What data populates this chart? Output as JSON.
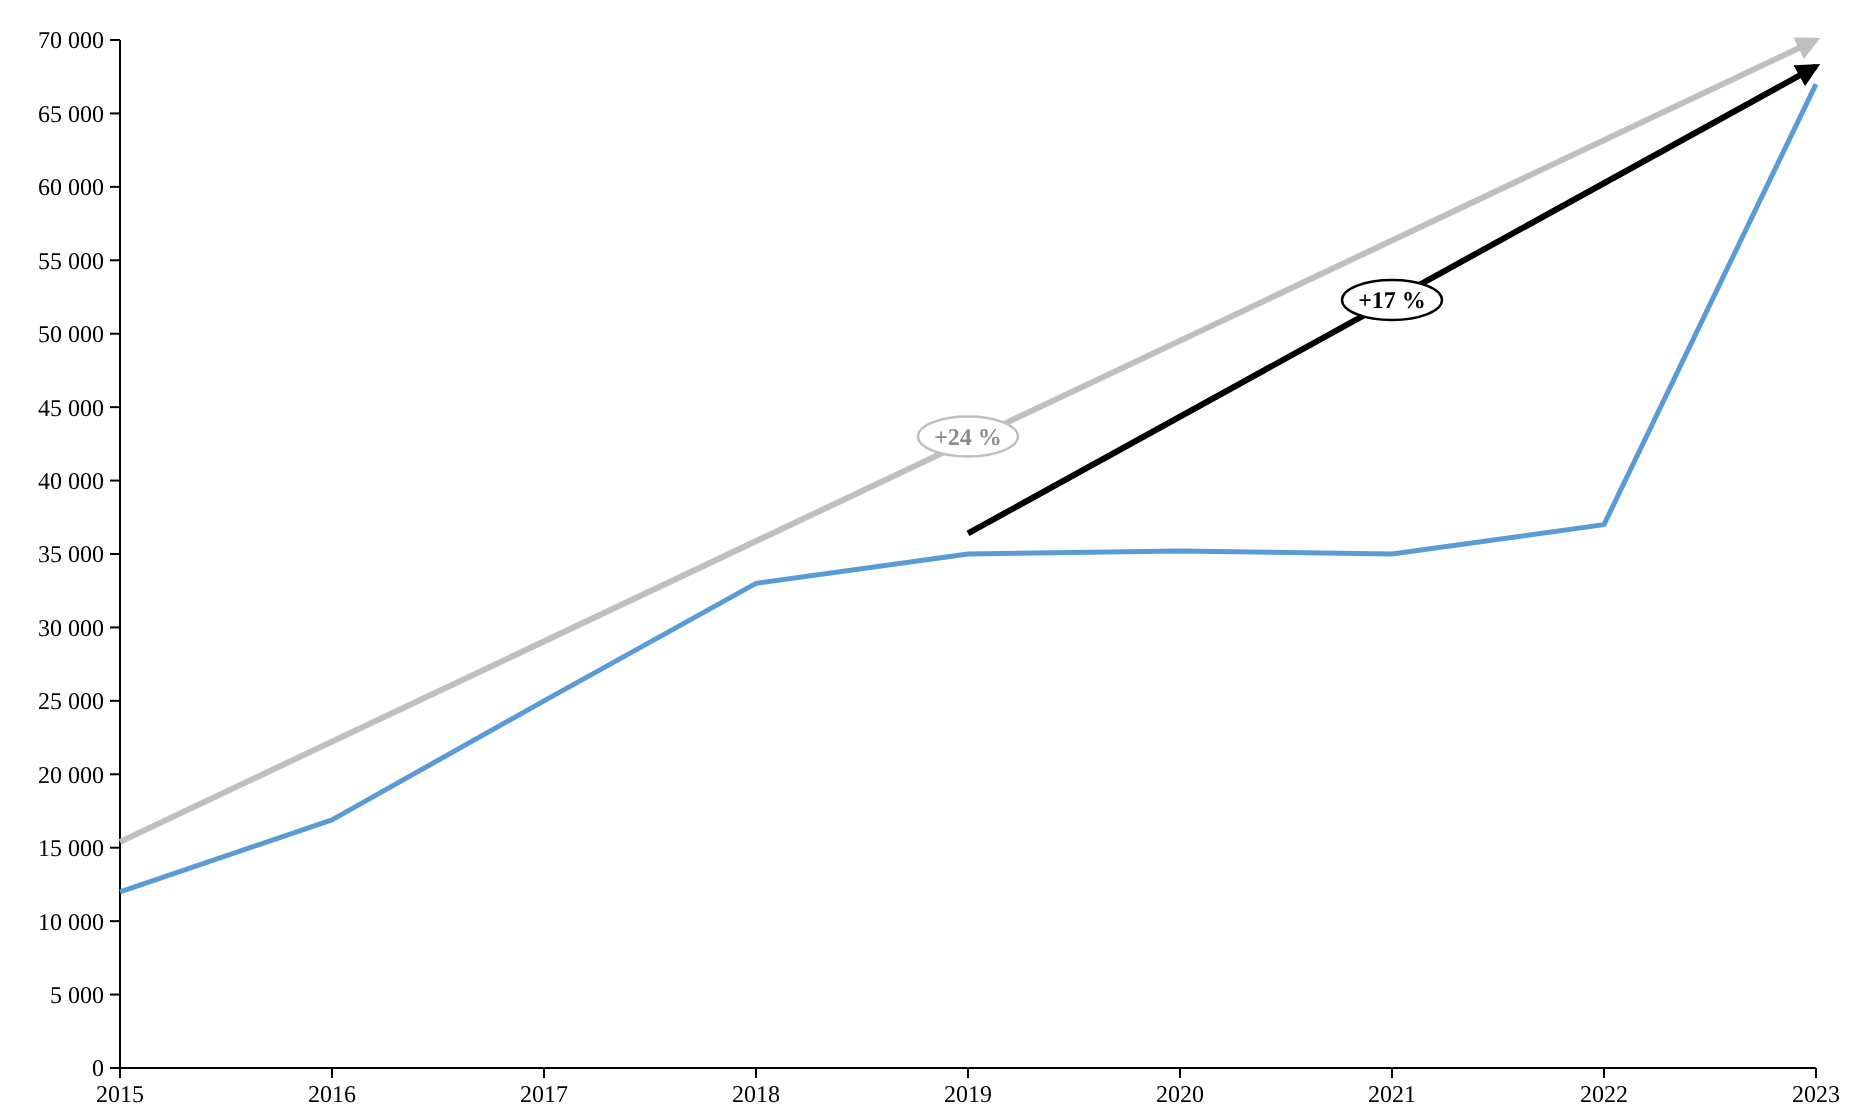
{
  "chart_data": {
    "type": "line",
    "x": [
      2015,
      2016,
      2017,
      2018,
      2019,
      2020,
      2021,
      2022,
      2023
    ],
    "series": [
      {
        "color": "#5b9bd5",
        "values": [
          12000,
          16900,
          25000,
          33000,
          35000,
          35200,
          35000,
          37000,
          67000
        ]
      },
      {
        "type": "line",
        "color": "#bfbfbf",
        "x": [
          2015,
          2023
        ],
        "values": [
          15400,
          70000
        ]
      },
      {
        "type": "line",
        "color": "#000000",
        "x": [
          2019,
          2023
        ],
        "values": [
          36400,
          68200
        ]
      }
    ],
    "annotations": [
      {
        "text": "+24 %",
        "x": 2019,
        "y": 43000
      },
      {
        "text": "+17 %",
        "x": 2021,
        "y": 52300
      }
    ],
    "xlim": [
      2015,
      2023
    ],
    "xticks": [
      2015,
      2016,
      2017,
      2018,
      2019,
      2020,
      2021,
      2022,
      2023
    ],
    "ylim": [
      0,
      70000
    ],
    "yticks": [
      {
        "value": 0,
        "label": "0"
      },
      {
        "value": 5000,
        "label": "5 000"
      },
      {
        "value": 10000,
        "label": "10 000"
      },
      {
        "value": 15000,
        "label": "15 000"
      },
      {
        "value": 20000,
        "label": "20 000"
      },
      {
        "value": 25000,
        "label": "25 000"
      },
      {
        "value": 30000,
        "label": "30 000"
      },
      {
        "value": 35000,
        "label": "35 000"
      },
      {
        "value": 40000,
        "label": "40 000"
      },
      {
        "value": 45000,
        "label": "45 000"
      },
      {
        "value": 50000,
        "label": "50 000"
      },
      {
        "value": 55000,
        "label": "55 000"
      },
      {
        "value": 60000,
        "label": "60 000"
      },
      {
        "value": 65000,
        "label": "65 000"
      },
      {
        "value": 70000,
        "label": "70 000"
      }
    ],
    "grid": false
  }
}
